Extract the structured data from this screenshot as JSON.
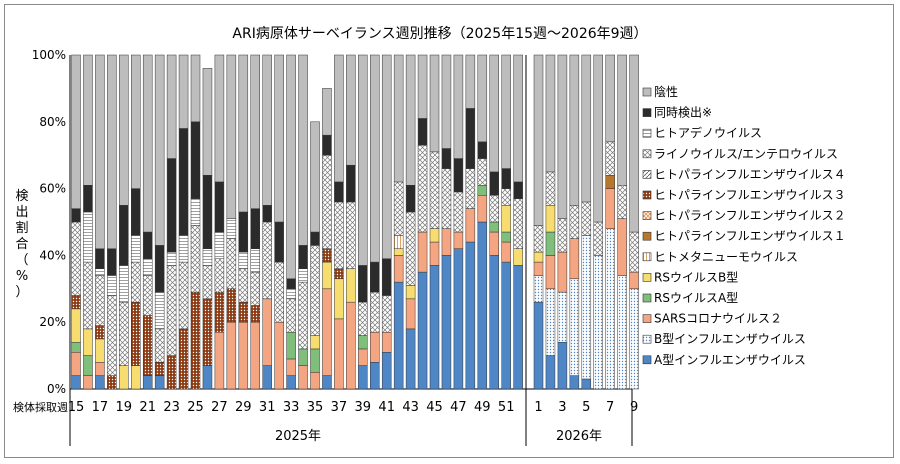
{
  "chart_data": {
    "type": "bar",
    "stacked": true,
    "normalized": true,
    "title": "ARI病原体サーベイランス週別推移（2025年15週～2026年9週）",
    "ylabel": "検出割合（%）",
    "xlabel_prefix": "検体採取週",
    "ylim": [
      0,
      100
    ],
    "yticks": [
      "0%",
      "20%",
      "40%",
      "60%",
      "80%",
      "100%"
    ],
    "grid": false,
    "legend_position": "right",
    "groups": [
      {
        "label": "2025年",
        "weeks": [
          15,
          16,
          17,
          18,
          19,
          20,
          21,
          22,
          23,
          24,
          25,
          26,
          27,
          28,
          29,
          30,
          31,
          32,
          33,
          34,
          35,
          36,
          37,
          38,
          39,
          40,
          41,
          42,
          43,
          44,
          45,
          46,
          47,
          48,
          49,
          50,
          51,
          52
        ]
      },
      {
        "label": "2026年",
        "weeks": [
          1,
          2,
          3,
          4,
          5,
          6,
          7,
          8,
          9
        ]
      }
    ],
    "tick_labels_2025": [
      "15",
      "17",
      "19",
      "21",
      "23",
      "25",
      "27",
      "29",
      "31",
      "33",
      "35",
      "37",
      "39",
      "41",
      "43",
      "45",
      "47",
      "49",
      "51"
    ],
    "tick_labels_2026": [
      "1",
      "3",
      "5",
      "7",
      "9"
    ],
    "series": [
      {
        "name": "A型インフルエンザウイルス",
        "color": "#4f86c6",
        "pattern": "none",
        "values": [
          4,
          0,
          4,
          0,
          0,
          0,
          4,
          4,
          0,
          0,
          0,
          7,
          0,
          0,
          0,
          0,
          7,
          0,
          4,
          0,
          0,
          4,
          0,
          0,
          7,
          8,
          11,
          32,
          18,
          35,
          37,
          40,
          42,
          44,
          50,
          40,
          38,
          37,
          26,
          10,
          14,
          4,
          3,
          0,
          0,
          0,
          0
        ]
      },
      {
        "name": "B型インフルエンザウイルス",
        "color": "#ffffff",
        "pattern": "dots",
        "values": [
          0,
          0,
          0,
          0,
          0,
          0,
          0,
          0,
          0,
          0,
          0,
          0,
          0,
          0,
          0,
          0,
          0,
          0,
          0,
          0,
          0,
          0,
          0,
          0,
          0,
          0,
          0,
          0,
          0,
          0,
          0,
          0,
          0,
          0,
          0,
          0,
          0,
          0,
          8,
          20,
          15,
          29,
          43,
          40,
          48,
          34,
          30
        ]
      },
      {
        "name": "SARSコロナウイルス２",
        "color": "#f4a582",
        "pattern": "none",
        "values": [
          7,
          4,
          4,
          0,
          0,
          0,
          0,
          0,
          0,
          0,
          0,
          0,
          17,
          20,
          20,
          20,
          20,
          20,
          5,
          7,
          5,
          26,
          21,
          26,
          5,
          9,
          6,
          8,
          9,
          12,
          7,
          8,
          5,
          10,
          8,
          7,
          6,
          0,
          4,
          10,
          12,
          12,
          0,
          0,
          12,
          17,
          5
        ]
      },
      {
        "name": "RSウイルスA型",
        "color": "#7fbf7b",
        "pattern": "none",
        "values": [
          3,
          6,
          0,
          0,
          0,
          0,
          0,
          0,
          0,
          0,
          0,
          0,
          0,
          0,
          0,
          0,
          0,
          0,
          8,
          5,
          7,
          0,
          0,
          0,
          4,
          0,
          0,
          0,
          0,
          0,
          0,
          0,
          0,
          0,
          3,
          3,
          3,
          0,
          0,
          7,
          0,
          0,
          0,
          0,
          0,
          0,
          0
        ]
      },
      {
        "name": "RSウイルスB型",
        "color": "#f7dc6f",
        "pattern": "none",
        "values": [
          10,
          8,
          7,
          0,
          7,
          7,
          0,
          0,
          0,
          0,
          0,
          0,
          0,
          0,
          0,
          0,
          0,
          0,
          0,
          0,
          4,
          8,
          12,
          10,
          0,
          0,
          0,
          2,
          4,
          0,
          4,
          0,
          0,
          0,
          0,
          0,
          8,
          5,
          3,
          8,
          0,
          0,
          0,
          0,
          0,
          0,
          0
        ]
      },
      {
        "name": "ヒトメタニューモウイルス",
        "color": "#ffffff",
        "pattern": "vlines",
        "values": [
          0,
          0,
          0,
          0,
          0,
          0,
          0,
          0,
          0,
          0,
          0,
          0,
          0,
          0,
          0,
          0,
          0,
          0,
          0,
          0,
          0,
          0,
          0,
          0,
          0,
          0,
          0,
          4,
          0,
          0,
          0,
          0,
          0,
          0,
          0,
          0,
          0,
          0,
          0,
          0,
          0,
          0,
          0,
          0,
          0,
          0,
          0
        ]
      },
      {
        "name": "ヒトパラインフルエンザウイルス１",
        "color": "#b8772f",
        "pattern": "none",
        "values": [
          0,
          0,
          0,
          0,
          0,
          0,
          0,
          0,
          0,
          0,
          0,
          0,
          0,
          0,
          0,
          0,
          0,
          0,
          0,
          0,
          0,
          0,
          0,
          0,
          0,
          0,
          0,
          0,
          0,
          0,
          0,
          0,
          0,
          0,
          0,
          0,
          0,
          0,
          0,
          0,
          0,
          0,
          0,
          0,
          4,
          0,
          0
        ]
      },
      {
        "name": "ヒトパラインフルエンザウイルス２",
        "color": "#f6c7a7",
        "pattern": "crosshatch",
        "values": [
          0,
          0,
          0,
          0,
          0,
          0,
          0,
          0,
          0,
          0,
          0,
          0,
          0,
          0,
          0,
          0,
          0,
          0,
          0,
          0,
          0,
          0,
          0,
          0,
          0,
          0,
          0,
          0,
          0,
          0,
          0,
          0,
          0,
          0,
          0,
          0,
          0,
          0,
          0,
          0,
          0,
          0,
          0,
          0,
          0,
          0,
          0
        ]
      },
      {
        "name": "ヒトパラインフルエンザウイルス３",
        "color": "#8b3a13",
        "pattern": "dots",
        "values": [
          4,
          0,
          4,
          4,
          0,
          19,
          18,
          4,
          10,
          18,
          29,
          20,
          12,
          10,
          6,
          5,
          0,
          0,
          0,
          0,
          0,
          4,
          3,
          0,
          0,
          0,
          0,
          0,
          0,
          0,
          0,
          0,
          0,
          0,
          0,
          0,
          0,
          0,
          0,
          0,
          0,
          0,
          0,
          0,
          0,
          0,
          0
        ]
      },
      {
        "name": "ヒトパラインフルエンザウイルス４",
        "color": "#ffffff",
        "pattern": "diag",
        "values": [
          0,
          0,
          0,
          0,
          0,
          0,
          0,
          0,
          0,
          0,
          0,
          0,
          0,
          0,
          0,
          0,
          0,
          0,
          0,
          0,
          0,
          0,
          0,
          0,
          0,
          0,
          0,
          0,
          0,
          0,
          0,
          0,
          0,
          0,
          0,
          0,
          0,
          0,
          0,
          0,
          0,
          0,
          0,
          0,
          0,
          0,
          0
        ]
      },
      {
        "name": "ライノウイルス/エンテロウイルス",
        "color": "#ffffff",
        "pattern": "xhatch",
        "values": [
          22,
          20,
          15,
          24,
          19,
          12,
          12,
          10,
          27,
          20,
          20,
          10,
          10,
          15,
          10,
          10,
          23,
          18,
          10,
          20,
          27,
          28,
          20,
          20,
          10,
          12,
          11,
          16,
          22,
          26,
          23,
          18,
          12,
          12,
          8,
          8,
          5,
          15,
          8,
          10,
          10,
          10,
          10,
          10,
          10,
          10,
          12
        ]
      },
      {
        "name": "ヒトアデノウイルス",
        "color": "#ffffff",
        "pattern": "hlines",
        "values": [
          0,
          15,
          2,
          6,
          11,
          8,
          5,
          11,
          4,
          8,
          8,
          5,
          8,
          6,
          5,
          7,
          0,
          0,
          3,
          4,
          0,
          0,
          0,
          0,
          0,
          0,
          0,
          0,
          0,
          0,
          0,
          0,
          0,
          0,
          0,
          0,
          0,
          0,
          0,
          0,
          0,
          0,
          0,
          0,
          0,
          0,
          0
        ]
      },
      {
        "name": "同時検出※",
        "color": "#2b2b2b",
        "pattern": "none",
        "values": [
          4,
          8,
          6,
          8,
          18,
          14,
          8,
          14,
          28,
          32,
          23,
          22,
          15,
          0,
          12,
          12,
          5,
          12,
          3,
          7,
          4,
          6,
          6,
          11,
          11,
          9,
          11,
          0,
          8,
          8,
          0,
          6,
          10,
          18,
          5,
          7,
          6,
          5,
          0,
          0,
          0,
          0,
          0,
          0,
          0,
          0,
          0
        ]
      },
      {
        "name": "陰性",
        "color": "#bdbdbd",
        "pattern": "none",
        "values": [
          46,
          39,
          58,
          58,
          45,
          40,
          53,
          57,
          31,
          22,
          20,
          32,
          38,
          49,
          47,
          46,
          45,
          50,
          67,
          57,
          33,
          14,
          38,
          33,
          63,
          62,
          61,
          38,
          39,
          19,
          29,
          28,
          31,
          16,
          26,
          35,
          34,
          38,
          51,
          35,
          49,
          45,
          44,
          50,
          26,
          39,
          53
        ]
      }
    ]
  }
}
